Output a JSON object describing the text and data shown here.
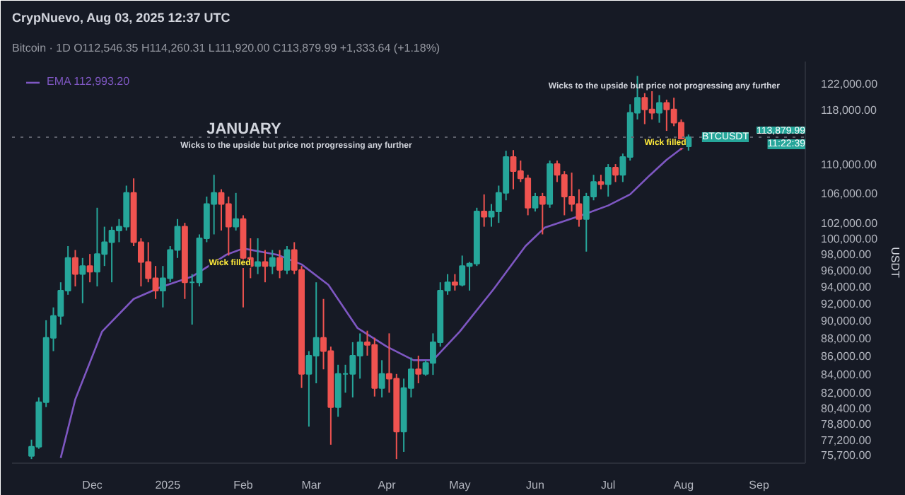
{
  "chart_data": {
    "type": "candlestick",
    "title": "CrypNuevo, Aug 03, 2025 12:37 UTC",
    "subtitle": "Bitcoin · 1D   O112,546.35  H114,260.31  L111,920.00  C113,879.99  +1,333.64 (+1.18%)",
    "ylabel": "USDT",
    "x": [
      "2024-11-06",
      "2024-11-09",
      "2024-11-12",
      "2024-11-15",
      "2024-11-18",
      "2024-11-21",
      "2024-11-24",
      "2024-11-27",
      "2024-11-30",
      "2024-12-03",
      "2024-12-06",
      "2024-12-09",
      "2024-12-12",
      "2024-12-15",
      "2024-12-18",
      "2024-12-21",
      "2024-12-24",
      "2024-12-27",
      "2024-12-30",
      "2025-01-02",
      "2025-01-05",
      "2025-01-08",
      "2025-01-11",
      "2025-01-14",
      "2025-01-17",
      "2025-01-20",
      "2025-01-23",
      "2025-01-26",
      "2025-01-29",
      "2025-02-01",
      "2025-02-04",
      "2025-02-07",
      "2025-02-10",
      "2025-02-13",
      "2025-02-16",
      "2025-02-19",
      "2025-02-22",
      "2025-02-25",
      "2025-02-28",
      "2025-03-03",
      "2025-03-06",
      "2025-03-09",
      "2025-03-12",
      "2025-03-15",
      "2025-03-18",
      "2025-03-21",
      "2025-03-24",
      "2025-03-27",
      "2025-03-30",
      "2025-04-02",
      "2025-04-05",
      "2025-04-08",
      "2025-04-11",
      "2025-04-14",
      "2025-04-17",
      "2025-04-20",
      "2025-04-23",
      "2025-04-26",
      "2025-04-29",
      "2025-05-02",
      "2025-05-05",
      "2025-05-08",
      "2025-05-11",
      "2025-05-14",
      "2025-05-17",
      "2025-05-20",
      "2025-05-23",
      "2025-05-26",
      "2025-05-29",
      "2025-06-01",
      "2025-06-04",
      "2025-06-07",
      "2025-06-10",
      "2025-06-13",
      "2025-06-16",
      "2025-06-19",
      "2025-06-22",
      "2025-06-25",
      "2025-06-28",
      "2025-07-01",
      "2025-07-04",
      "2025-07-07",
      "2025-07-10",
      "2025-07-13",
      "2025-07-16",
      "2025-07-19",
      "2025-07-22",
      "2025-07-25",
      "2025-07-28",
      "2025-07-31",
      "2025-08-03"
    ],
    "ohlc": [
      [
        75600,
        77200,
        75300,
        76500
      ],
      [
        76500,
        81500,
        76300,
        81000
      ],
      [
        81000,
        90000,
        80500,
        88000
      ],
      [
        88000,
        91500,
        86500,
        90500
      ],
      [
        90500,
        94500,
        89500,
        93500
      ],
      [
        93500,
        99000,
        93000,
        97500
      ],
      [
        97500,
        98500,
        94000,
        95500
      ],
      [
        95500,
        97500,
        92000,
        96500
      ],
      [
        96500,
        98000,
        94500,
        95800
      ],
      [
        95800,
        104000,
        94000,
        98000
      ],
      [
        98000,
        101500,
        96500,
        99500
      ],
      [
        99500,
        101500,
        94500,
        101000
      ],
      [
        101000,
        102500,
        99500,
        101500
      ],
      [
        101500,
        107000,
        101000,
        106000
      ],
      [
        106000,
        108000,
        99000,
        99500
      ],
      [
        99500,
        100000,
        94000,
        97000
      ],
      [
        97000,
        99500,
        94500,
        95000
      ],
      [
        95000,
        96500,
        92500,
        93500
      ],
      [
        93500,
        96500,
        91500,
        95000
      ],
      [
        95000,
        99000,
        94500,
        98500
      ],
      [
        98500,
        102500,
        97500,
        101500
      ],
      [
        101500,
        102000,
        92500,
        94500
      ],
      [
        94500,
        95500,
        89500,
        94500
      ],
      [
        94500,
        100500,
        94000,
        100000
      ],
      [
        100000,
        105500,
        99500,
        104500
      ],
      [
        104500,
        108500,
        100500,
        106000
      ],
      [
        106000,
        106500,
        101000,
        104500
      ],
      [
        104500,
        105500,
        97800,
        101500
      ],
      [
        101500,
        106000,
        101000,
        102500
      ],
      [
        102500,
        103000,
        91500,
        97500
      ],
      [
        97500,
        100000,
        95000,
        96500
      ],
      [
        96500,
        100000,
        95500,
        97000
      ],
      [
        97000,
        98500,
        94500,
        96500
      ],
      [
        96500,
        98500,
        95500,
        97500
      ],
      [
        97500,
        98500,
        95000,
        96000
      ],
      [
        96000,
        99000,
        95500,
        98500
      ],
      [
        98500,
        99500,
        95500,
        96000
      ],
      [
        96000,
        96500,
        82500,
        84000
      ],
      [
        84000,
        86500,
        78500,
        86000
      ],
      [
        86000,
        94500,
        83000,
        88000
      ],
      [
        88000,
        92500,
        84500,
        86500
      ],
      [
        86500,
        87000,
        76700,
        80500
      ],
      [
        80500,
        85000,
        79500,
        84000
      ],
      [
        84000,
        85000,
        82000,
        84000
      ],
      [
        84000,
        87500,
        81500,
        86000
      ],
      [
        86000,
        88500,
        83500,
        87500
      ],
      [
        87500,
        88800,
        86000,
        87200
      ],
      [
        87200,
        88000,
        81600,
        82500
      ],
      [
        82500,
        85500,
        81500,
        84000
      ],
      [
        84000,
        88500,
        82000,
        83500
      ],
      [
        83500,
        84000,
        75300,
        78000
      ],
      [
        78000,
        83500,
        76000,
        82500
      ],
      [
        82500,
        85800,
        81500,
        84500
      ],
      [
        84500,
        86000,
        83000,
        84000
      ],
      [
        84000,
        85500,
        83800,
        85200
      ],
      [
        85200,
        88500,
        83900,
        87500
      ],
      [
        87500,
        94500,
        87000,
        93500
      ],
      [
        93500,
        95500,
        93000,
        94500
      ],
      [
        94500,
        95500,
        93500,
        94200
      ],
      [
        94200,
        97800,
        94000,
        96500
      ],
      [
        96500,
        97000,
        93500,
        96800
      ],
      [
        96800,
        104000,
        96500,
        103500
      ],
      [
        103500,
        105800,
        101500,
        102800
      ],
      [
        102800,
        104500,
        101500,
        103500
      ],
      [
        103500,
        107000,
        102000,
        106000
      ],
      [
        106000,
        111900,
        105000,
        111000
      ],
      [
        111000,
        112000,
        106500,
        109000
      ],
      [
        109000,
        110500,
        107500,
        108000
      ],
      [
        108000,
        108500,
        103000,
        104000
      ],
      [
        104000,
        106000,
        103500,
        105500
      ],
      [
        105500,
        106000,
        100500,
        104500
      ],
      [
        104500,
        110500,
        104000,
        110000
      ],
      [
        110000,
        110500,
        107500,
        108500
      ],
      [
        108500,
        109000,
        103000,
        105500
      ],
      [
        105500,
        108800,
        103500,
        104500
      ],
      [
        104500,
        106500,
        101500,
        102500
      ],
      [
        102500,
        106000,
        98300,
        105500
      ],
      [
        105500,
        108500,
        105000,
        107500
      ],
      [
        107500,
        108500,
        106500,
        107200
      ],
      [
        107200,
        110000,
        105500,
        109500
      ],
      [
        109500,
        110000,
        107500,
        108500
      ],
      [
        108500,
        111500,
        107500,
        111000
      ],
      [
        111000,
        118800,
        110500,
        117500
      ],
      [
        117500,
        123200,
        116500,
        119800
      ],
      [
        119800,
        120500,
        115800,
        118000
      ],
      [
        118000,
        120800,
        116500,
        117500
      ],
      [
        117500,
        120200,
        116000,
        119000
      ],
      [
        119000,
        119500,
        114800,
        118000
      ],
      [
        118000,
        119800,
        115500,
        116000
      ],
      [
        116000,
        116500,
        112000,
        112546.35
      ],
      [
        112546.35,
        114260.31,
        111920,
        113879.99
      ]
    ],
    "colors": [
      "#26a69a",
      "#26a69a",
      "#26a69a",
      "#26a69a",
      "#26a69a",
      "#26a69a",
      "#ef5350",
      "#26a69a",
      "#ef5350",
      "#26a69a",
      "#26a69a",
      "#26a69a",
      "#26a69a",
      "#26a69a",
      "#ef5350",
      "#ef5350",
      "#ef5350",
      "#ef5350",
      "#26a69a",
      "#26a69a",
      "#26a69a",
      "#ef5350",
      "#26a69a",
      "#26a69a",
      "#26a69a",
      "#26a69a",
      "#ef5350",
      "#ef5350",
      "#26a69a",
      "#ef5350",
      "#ef5350",
      "#26a69a",
      "#ef5350",
      "#26a69a",
      "#ef5350",
      "#26a69a",
      "#ef5350",
      "#ef5350",
      "#26a69a",
      "#26a69a",
      "#ef5350",
      "#ef5350",
      "#26a69a",
      "#26a69a",
      "#26a69a",
      "#26a69a",
      "#ef5350",
      "#ef5350",
      "#26a69a",
      "#ef5350",
      "#ef5350",
      "#26a69a",
      "#26a69a",
      "#ef5350",
      "#26a69a",
      "#26a69a",
      "#26a69a",
      "#26a69a",
      "#ef5350",
      "#26a69a",
      "#26a69a",
      "#26a69a",
      "#ef5350",
      "#26a69a",
      "#26a69a",
      "#26a69a",
      "#ef5350",
      "#ef5350",
      "#ef5350",
      "#26a69a",
      "#ef5350",
      "#26a69a",
      "#ef5350",
      "#ef5350",
      "#ef5350",
      "#ef5350",
      "#26a69a",
      "#26a69a",
      "#ef5350",
      "#26a69a",
      "#ef5350",
      "#26a69a",
      "#26a69a",
      "#26a69a",
      "#ef5350",
      "#ef5350",
      "#26a69a",
      "#ef5350",
      "#ef5350",
      "#ef5350",
      "#26a69a"
    ],
    "series": [
      {
        "type": "line",
        "name": "EMA 112,993.20",
        "color": "#7e57c2",
        "x": [
          "2024-11-18",
          "2024-11-24",
          "2024-12-05",
          "2024-12-18",
          "2024-12-29",
          "2025-01-11",
          "2025-01-25",
          "2025-02-01",
          "2025-02-15",
          "2025-02-25",
          "2025-03-08",
          "2025-03-20",
          "2025-04-01",
          "2025-04-12",
          "2025-04-20",
          "2025-05-01",
          "2025-05-15",
          "2025-05-28",
          "2025-06-05",
          "2025-06-20",
          "2025-07-01",
          "2025-07-10",
          "2025-07-18",
          "2025-07-25",
          "2025-08-03"
        ],
        "values": [
          75400,
          81300,
          88700,
          92500,
          93900,
          95200,
          97900,
          98700,
          97900,
          96700,
          94200,
          89100,
          87000,
          85500,
          85500,
          88700,
          93700,
          99000,
          101400,
          103000,
          104300,
          105800,
          108400,
          110600,
          112993.2
        ]
      }
    ],
    "xlim": [
      "2024-10-29",
      "2025-09-20"
    ],
    "ylim": [
      74900,
      125500
    ],
    "log": true,
    "xticks": [
      {
        "value": "2024-12-01",
        "label": "Dec"
      },
      {
        "value": "2025-01-01",
        "label": "2025"
      },
      {
        "value": "2025-02-01",
        "label": "Feb"
      },
      {
        "value": "2025-03-01",
        "label": "Mar"
      },
      {
        "value": "2025-04-01",
        "label": "Apr"
      },
      {
        "value": "2025-05-01",
        "label": "May"
      },
      {
        "value": "2025-06-01",
        "label": "Jun"
      },
      {
        "value": "2025-07-01",
        "label": "Jul"
      },
      {
        "value": "2025-08-01",
        "label": "Aug"
      },
      {
        "value": "2025-09-01",
        "label": "Sep"
      }
    ],
    "yticks": [
      {
        "value": 122000,
        "label": "122,000.00"
      },
      {
        "value": 118000,
        "label": "118,000.00"
      },
      {
        "value": 110000,
        "label": "110,000.00"
      },
      {
        "value": 106000,
        "label": "106,000.00"
      },
      {
        "value": 102000,
        "label": "102,000.00"
      },
      {
        "value": 100000,
        "label": "100,000.00"
      },
      {
        "value": 98000,
        "label": "98,000.00"
      },
      {
        "value": 96000,
        "label": "96,000.00"
      },
      {
        "value": 94000,
        "label": "94,000.00"
      },
      {
        "value": 92000,
        "label": "92,000.00"
      },
      {
        "value": 90000,
        "label": "90,000.00"
      },
      {
        "value": 88000,
        "label": "88,000.00"
      },
      {
        "value": 86000,
        "label": "86,000.00"
      },
      {
        "value": 84000,
        "label": "84,000.00"
      },
      {
        "value": 82000,
        "label": "82,000.00"
      },
      {
        "value": 80400,
        "label": "80,400.00"
      },
      {
        "value": 78800,
        "label": "78,800.00"
      },
      {
        "value": 77200,
        "label": "77,200.00"
      },
      {
        "value": 75700,
        "label": "75,700.00"
      }
    ],
    "ref_lines": [
      {
        "axis": "y",
        "value": 113879.99,
        "label": "BTCUSDT",
        "line_style": "dotted",
        "color": "#5d606b"
      }
    ],
    "annotations": [
      "JANUARY",
      "Wicks to the upside but price not progressing any further",
      "Wick filled",
      "Wicks to the  upside but price not progressing any further",
      "Wick filled",
      "113,879.99",
      "11:22:39"
    ],
    "legend": "top left"
  }
}
